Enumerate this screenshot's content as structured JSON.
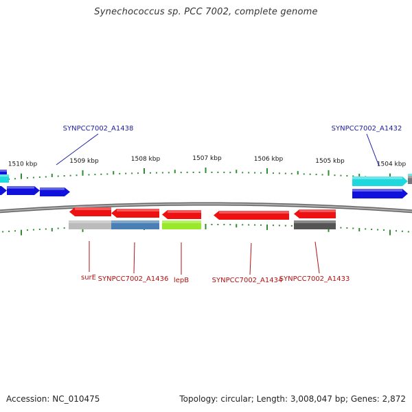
{
  "title": "Synechococcus sp. PCC 7002, complete genome",
  "footer": {
    "accession": "Accession: NC_010475",
    "topology": "Topology: circular; Length: 3,008,047 bp; Genes: 2,872"
  },
  "colors": {
    "backbone": "#8a8a8a",
    "tick": "#2e8b2e",
    "forward_label": "#1a1aa0",
    "reverse_label": "#b01010"
  },
  "scale_labels": [
    {
      "kbp": 1510,
      "text": "1510 kbp"
    },
    {
      "kbp": 1509,
      "text": "1509 kbp"
    },
    {
      "kbp": 1508,
      "text": "1508 kbp"
    },
    {
      "kbp": 1507,
      "text": "1507 kbp"
    },
    {
      "kbp": 1506,
      "text": "1506 kbp"
    },
    {
      "kbp": 1505,
      "text": "1505 kbp"
    },
    {
      "kbp": 1504,
      "text": "1504 kbp"
    }
  ],
  "forward_features": [
    {
      "name": "SYNPCC7002_A1438",
      "labelled": true,
      "track": "blue",
      "color": "#1111dd"
    },
    {
      "name": "",
      "labelled": false,
      "track": "blue",
      "color": "#1111dd"
    },
    {
      "name": "",
      "labelled": false,
      "track": "blue",
      "color": "#1111dd"
    },
    {
      "name": "",
      "labelled": false,
      "track": "cyan",
      "color": "#1fd8de"
    },
    {
      "name": "SYNPCC7002_A1432",
      "labelled": true,
      "track": "cyan",
      "color": "#1fd8de"
    },
    {
      "name": "",
      "labelled": false,
      "track": "blue",
      "color": "#1111dd"
    },
    {
      "name": "",
      "labelled": false,
      "track": "cyan",
      "color": "#1fd8de"
    },
    {
      "name": "",
      "labelled": false,
      "track": "grey",
      "color": "#777777"
    }
  ],
  "reverse_features": [
    {
      "name": "surE",
      "cds_color": "#ee1111",
      "sub_color": "#bbbbbb"
    },
    {
      "name": "SYNPCC7002_A1436",
      "cds_color": "#ee1111",
      "sub_color": "#4a7fb5"
    },
    {
      "name": "lepB",
      "cds_color": "#ee1111",
      "sub_color": "#99e82a"
    },
    {
      "name": "SYNPCC7002_A1434",
      "cds_color": "#ee1111",
      "sub_color": ""
    },
    {
      "name": "SYNPCC7002_A1433",
      "cds_color": "#ee1111",
      "sub_color": "#555555"
    }
  ]
}
